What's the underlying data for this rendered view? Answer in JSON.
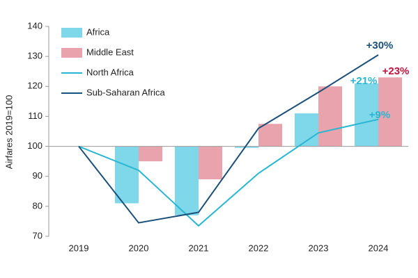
{
  "chart_data": {
    "type": "bar-line",
    "y_label": "Airfares 2019=100",
    "categories": [
      "2019",
      "2020",
      "2021",
      "2022",
      "2023",
      "2024"
    ],
    "series": [
      {
        "name": "Africa",
        "type": "bar",
        "color": "#7fd8ea",
        "values": [
          100,
          81,
          77,
          99.5,
          111,
          121
        ]
      },
      {
        "name": "Middle East",
        "type": "bar",
        "color": "#e9a3ad",
        "values": [
          100,
          95,
          89,
          107.5,
          120,
          123
        ]
      },
      {
        "name": "North Africa",
        "type": "line",
        "color": "#29b6d2",
        "values": [
          100,
          92,
          73.5,
          91,
          104.5,
          109
        ]
      },
      {
        "name": "Sub-Saharan Africa",
        "type": "line",
        "color": "#1a4f7a",
        "values": [
          100,
          74.5,
          78,
          106,
          118,
          130.5
        ]
      }
    ],
    "bar_base": 100,
    "ylim": [
      70,
      140
    ],
    "yticks": [
      70,
      80,
      90,
      100,
      110,
      120,
      130,
      140
    ],
    "legend": "top-left",
    "annotations": [
      {
        "text": "+30%",
        "color": "#1a4f7a"
      },
      {
        "text": "+23%",
        "color": "#c0143c"
      },
      {
        "text": "+21%",
        "color": "#29b6d2"
      },
      {
        "text": "+9%",
        "color": "#29b6d2"
      }
    ]
  }
}
